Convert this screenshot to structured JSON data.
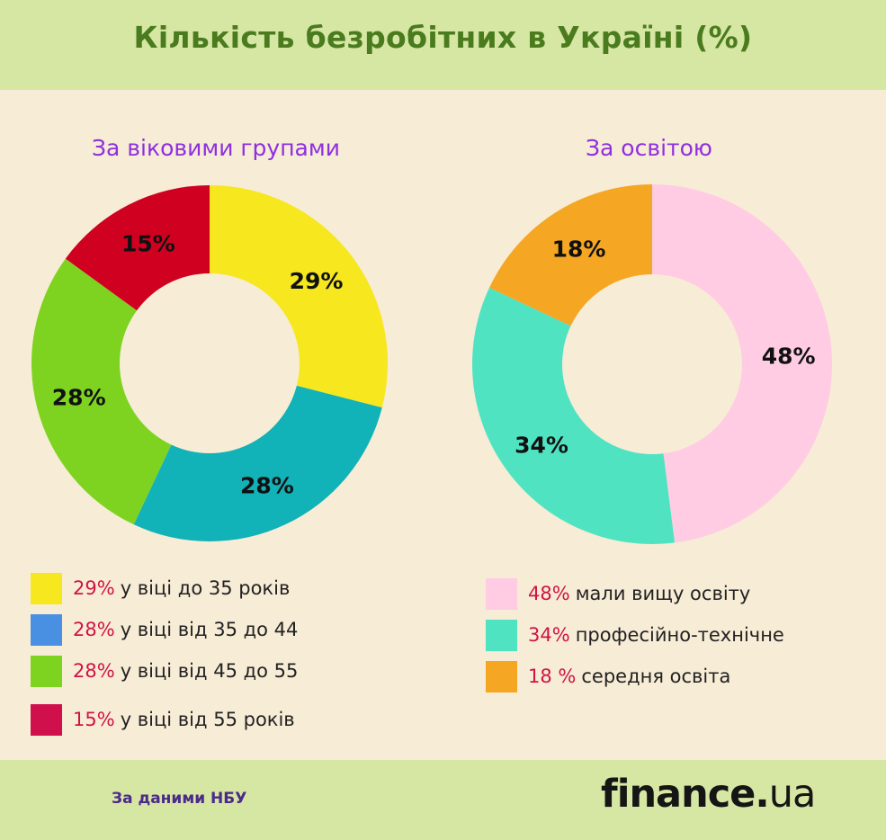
{
  "title": "Кількість безробітних в Україні (%)",
  "colors": {
    "header_bg": "#d6e6a3",
    "background": "#f7ecd6",
    "title": "#4a7b1e",
    "subtitle": "#8f2fe0",
    "percent_text": "#d01444"
  },
  "chart_data": [
    {
      "type": "pie",
      "donut": true,
      "title": "За віковими групами",
      "categories": [
        "у віці до 35 років",
        "у віці від 35 до 44",
        "у віці від 45 до 55",
        "у віці від 55 років"
      ],
      "values": [
        29,
        28,
        28,
        15
      ],
      "data_labels": [
        "29%",
        "28%",
        "28%",
        "15%"
      ],
      "colors": [
        "#f6e71f",
        "#11b2b8",
        "#7ed321",
        "#cf0020"
      ],
      "legend": {
        "placement": "bottom",
        "items": [
          {
            "pct": "29%",
            "text": "у віці до 35 років",
            "color": "#f6e71f"
          },
          {
            "pct": "28%",
            "text": "у віці від 35 до 44",
            "color": "#4a90e2"
          },
          {
            "pct": "28%",
            "text": "у віці від 45 до 55",
            "color": "#7ed321"
          },
          {
            "pct": "15%",
            "text": "у віці від 55 років",
            "color": "#d0104c"
          }
        ]
      }
    },
    {
      "type": "pie",
      "donut": true,
      "title": "За освітою",
      "categories": [
        "мали вищу освіту",
        "професійно-технічне",
        "середня освіта"
      ],
      "values": [
        48,
        34,
        18
      ],
      "data_labels": [
        "48%",
        "34%",
        "18%"
      ],
      "colors": [
        "#ffcce4",
        "#50e3c2",
        "#f5a623"
      ],
      "legend": {
        "placement": "bottom",
        "items": [
          {
            "pct": "48%",
            "text": "мали вищу освіту",
            "color": "#ffcce4"
          },
          {
            "pct": "34%",
            "text": "професійно-технічне",
            "color": "#50e3c2"
          },
          {
            "pct": "18 %",
            "text": "середня освіта",
            "color": "#f5a623"
          }
        ]
      }
    }
  ],
  "footer": {
    "source": "За даними НБУ",
    "logo": {
      "name": "finance",
      "dot": ".",
      "tld": "ua"
    }
  }
}
